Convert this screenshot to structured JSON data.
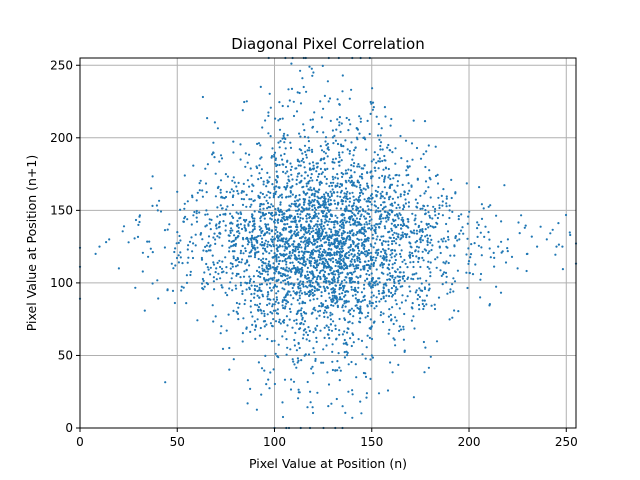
{
  "chart_data": {
    "type": "scatter",
    "title": "Diagonal Pixel Correlation",
    "xlabel": "Pixel Value at Position (n)",
    "ylabel": "Pixel Value at Position (n+1)",
    "xlim": [
      0,
      255
    ],
    "ylim": [
      0,
      255
    ],
    "xticks": [
      0,
      50,
      100,
      150,
      200,
      250
    ],
    "yticks": [
      0,
      50,
      100,
      150,
      200,
      250
    ],
    "grid": true,
    "legend": "none",
    "color": "#1f77b4",
    "series": [
      {
        "distribution": "cross-shaped cluster of pixel-pair values (several thousand points)",
        "horizontal_band": {
          "x_range": [
            8,
            252
          ],
          "y_center": 125,
          "y_spread": 15
        },
        "vertical_band": {
          "x_center": 125,
          "x_spread": 15,
          "y_range": [
            7,
            249
          ]
        },
        "dense_core": {
          "x_range": [
            95,
            160
          ],
          "y_range": [
            100,
            160
          ]
        },
        "sample_points": [
          [
            8,
            120
          ],
          [
            10,
            125
          ],
          [
            15,
            130
          ],
          [
            20,
            110
          ],
          [
            25,
            128
          ],
          [
            30,
            140
          ],
          [
            35,
            118
          ],
          [
            40,
            150
          ],
          [
            45,
            95
          ],
          [
            50,
            135
          ],
          [
            55,
            100
          ],
          [
            60,
            145
          ],
          [
            65,
            150
          ],
          [
            70,
            110
          ],
          [
            75,
            175
          ],
          [
            80,
            130
          ],
          [
            85,
            180
          ],
          [
            90,
            95
          ],
          [
            95,
            70
          ],
          [
            100,
            60
          ],
          [
            105,
            200
          ],
          [
            110,
            215
          ],
          [
            115,
            235
          ],
          [
            118,
            249
          ],
          [
            120,
            245
          ],
          [
            125,
            220
          ],
          [
            130,
            205
          ],
          [
            135,
            190
          ],
          [
            140,
            185
          ],
          [
            145,
            175
          ],
          [
            150,
            70
          ],
          [
            155,
            160
          ],
          [
            160,
            150
          ],
          [
            165,
            140
          ],
          [
            170,
            125
          ],
          [
            175,
            160
          ],
          [
            180,
            145
          ],
          [
            185,
            125
          ],
          [
            190,
            150
          ],
          [
            195,
            130
          ],
          [
            200,
            115
          ],
          [
            205,
            140
          ],
          [
            210,
            135
          ],
          [
            215,
            125
          ],
          [
            220,
            130
          ],
          [
            225,
            110
          ],
          [
            230,
            120
          ],
          [
            235,
            125
          ],
          [
            240,
            130
          ],
          [
            245,
            125
          ],
          [
            248,
            125
          ],
          [
            252,
            133
          ],
          [
            130,
            40
          ],
          [
            128,
            30
          ],
          [
            132,
            20
          ],
          [
            135,
            15
          ],
          [
            140,
            7
          ],
          [
            125,
            45
          ],
          [
            120,
            55
          ],
          [
            138,
            25
          ],
          [
            142,
            35
          ],
          [
            118,
            60
          ],
          [
            112,
            48
          ],
          [
            150,
            50
          ],
          [
            145,
            60
          ]
        ]
      }
    ]
  }
}
